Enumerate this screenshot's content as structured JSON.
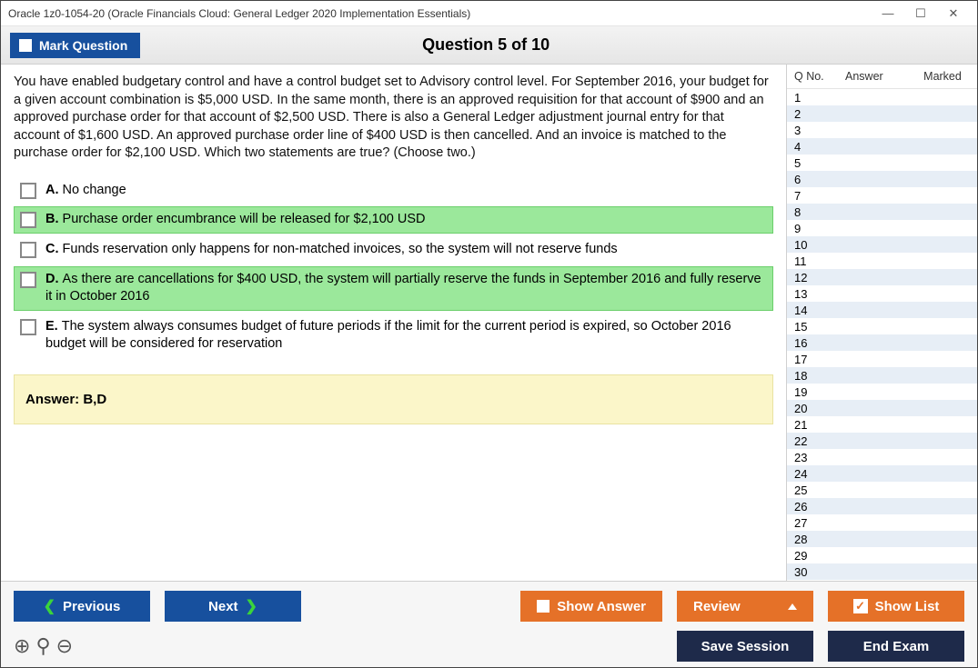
{
  "window": {
    "title": "Oracle 1z0-1054-20 (Oracle Financials Cloud: General Ledger 2020 Implementation Essentials)"
  },
  "header": {
    "mark_label": "Mark Question",
    "question_title": "Question 5 of 10"
  },
  "question": {
    "text": "You have enabled budgetary control and have a control budget set to Advisory control level. For September 2016, your budget for a given account combination is $5,000 USD. In the same month, there is an approved requisition for that account of $900 and an approved purchase order for that account of $2,500 USD. There is also a General Ledger adjustment journal entry for that account of $1,600 USD. An approved purchase order line of $400 USD is then cancelled. And an invoice is matched to the purchase order for $2,100 USD. Which two statements are true? (Choose two.)",
    "options": [
      {
        "letter": "A.",
        "text": "No change",
        "correct": false
      },
      {
        "letter": "B.",
        "text": "Purchase order encumbrance will be released for $2,100 USD",
        "correct": true
      },
      {
        "letter": "C.",
        "text": "Funds reservation only happens for non-matched invoices, so the system will not reserve funds",
        "correct": false
      },
      {
        "letter": "D.",
        "text": "As there are cancellations for $400 USD, the system will partially reserve the funds in September 2016 and fully reserve it in October 2016",
        "correct": true
      },
      {
        "letter": "E.",
        "text": "The system always consumes budget of future periods if the limit for the current period is expired, so October 2016 budget will be considered for reservation",
        "correct": false
      }
    ],
    "answer_label": "Answer: B,D"
  },
  "sidepanel": {
    "col_qno": "Q No.",
    "col_answer": "Answer",
    "col_marked": "Marked",
    "count": 30
  },
  "footer": {
    "previous": "Previous",
    "next": "Next",
    "show_answer": "Show Answer",
    "review": "Review",
    "show_list": "Show List",
    "save_session": "Save Session",
    "end_exam": "End Exam"
  },
  "colors": {
    "blue": "#17509e",
    "orange": "#e57128",
    "navy": "#1e2a4a",
    "correct_bg": "#9be89b",
    "answer_bg": "#fbf6c9",
    "even_row": "#e7eef6"
  }
}
